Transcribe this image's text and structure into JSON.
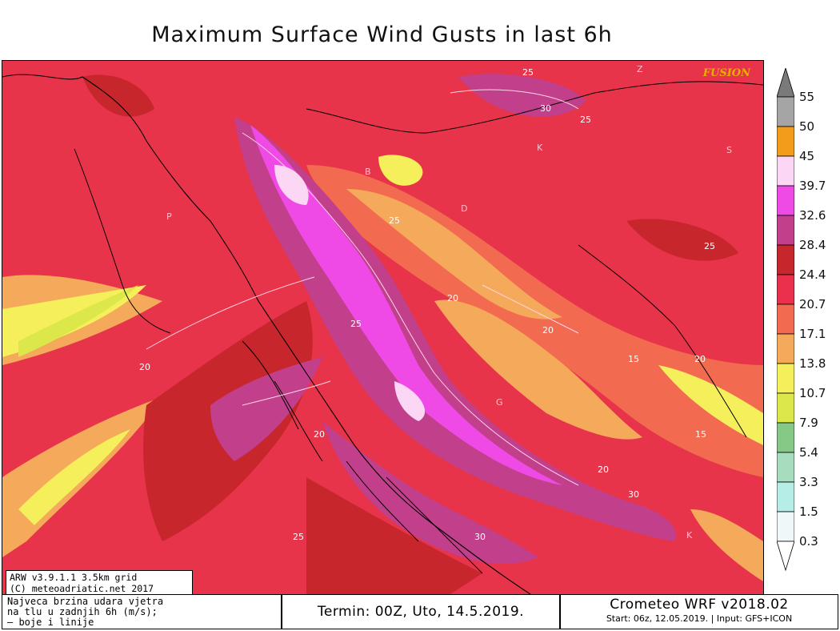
{
  "title": "Maximum Surface Wind Gusts in last 6h",
  "brand": "FUSION",
  "info_box": {
    "line1": "ARW v3.9.1.1 3.5km grid",
    "line2": "(C) meteoadriatic.net 2017"
  },
  "legend": {
    "levels": [
      "55",
      "50",
      "45",
      "39.7",
      "32.6",
      "28.4",
      "24.4",
      "20.7",
      "17.1",
      "13.8",
      "10.7",
      "7.9",
      "5.4",
      "3.3",
      "1.5",
      "0.3"
    ],
    "colors": [
      "#7a7a7a",
      "#a5a5a5",
      "#f39c1c",
      "#fbd7f5",
      "#f04ae6",
      "#c23f8c",
      "#c8262d",
      "#eb304d",
      "#f26a50",
      "#f5a95a",
      "#f6ef5c",
      "#dce84a",
      "#86c987",
      "#a8dcbf",
      "#b7ede7",
      "#eef8f8"
    ]
  },
  "contour_labels": [
    "25",
    "30",
    "25",
    "20",
    "25",
    "20",
    "20",
    "15",
    "20",
    "15",
    "20",
    "30",
    "25",
    "20",
    "25",
    "30",
    "25"
  ],
  "place_letters": [
    "B",
    "K",
    "D",
    "P",
    "G",
    "K",
    "S",
    "Z"
  ],
  "footer": {
    "legend_text": [
      "Najveca brzina udara vjetra",
      "na tlu u zadnjih 6h (m/s);",
      "— boje i linije"
    ],
    "termin": "Termin: 00Z, Uto, 14.5.2019.",
    "model_title": "Crometeo WRF v2018.02",
    "model_start": "Start: 06z, 12.05.2019. | Input: GFS+ICON"
  }
}
